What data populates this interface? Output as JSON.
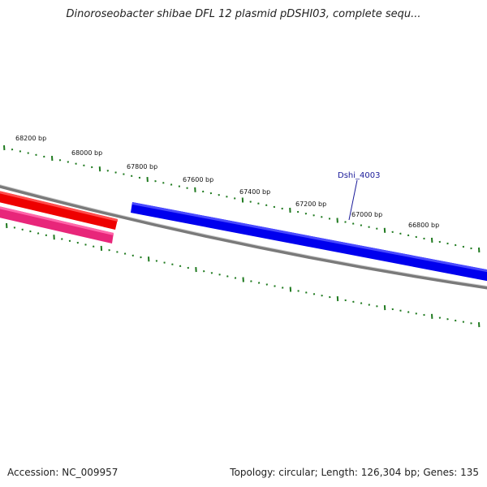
{
  "title": "Dinoroseobacter shibae DFL 12 plasmid pDSHI03, complete sequ...",
  "footer": {
    "accession": "Accession: NC_009957",
    "summary": "Topology: circular; Length: 126,304 bp; Genes: 135"
  },
  "colors": {
    "backbone": "#7a7a7a",
    "tick": "#1f7a1f",
    "gene_forward": "#0000ee",
    "gene_reverse_1": "#ee0000",
    "gene_reverse_2": "#e8267a",
    "label": "#1a1a99"
  },
  "scale_labels": [
    "68200 bp",
    "68000 bp",
    "67800 bp",
    "67600 bp",
    "67400 bp",
    "67200 bp",
    "67000 bp",
    "66800 bp"
  ],
  "gene_labels": [
    {
      "name": "Dshi_4003"
    }
  ]
}
